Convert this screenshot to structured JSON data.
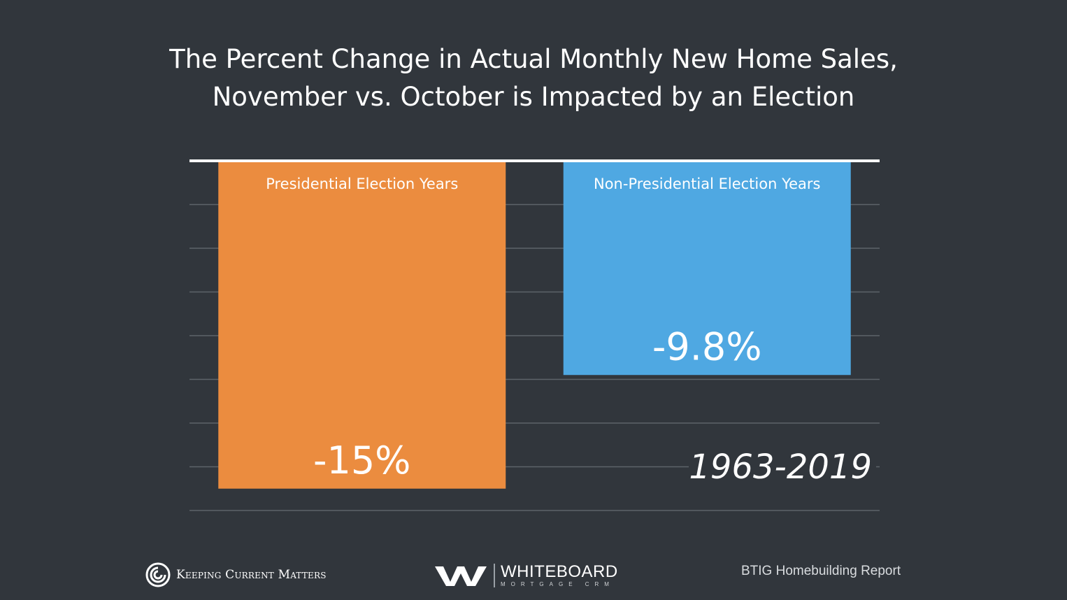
{
  "title_line1": "The Percent Change in Actual Monthly New Home Sales,",
  "title_line2": "November vs. October is Impacted by an Election",
  "chart_data": {
    "type": "bar",
    "categories": [
      "Presidential Election Years",
      "Non-Presidential Election Years"
    ],
    "values": [
      -15,
      -9.8
    ],
    "value_labels": [
      "-15%",
      "-9.8%"
    ],
    "ylim": [
      -16,
      0
    ],
    "grid": true,
    "annotation": "1963-2019",
    "colors": [
      "#eb8c3f",
      "#4fa8e2"
    ]
  },
  "footer": {
    "left_brand": "Keeping Current Matters",
    "center_brand": "WHITEBOARD",
    "center_sub": "MORTGAGE CRM",
    "right_source": "BTIG Homebuilding Report"
  }
}
